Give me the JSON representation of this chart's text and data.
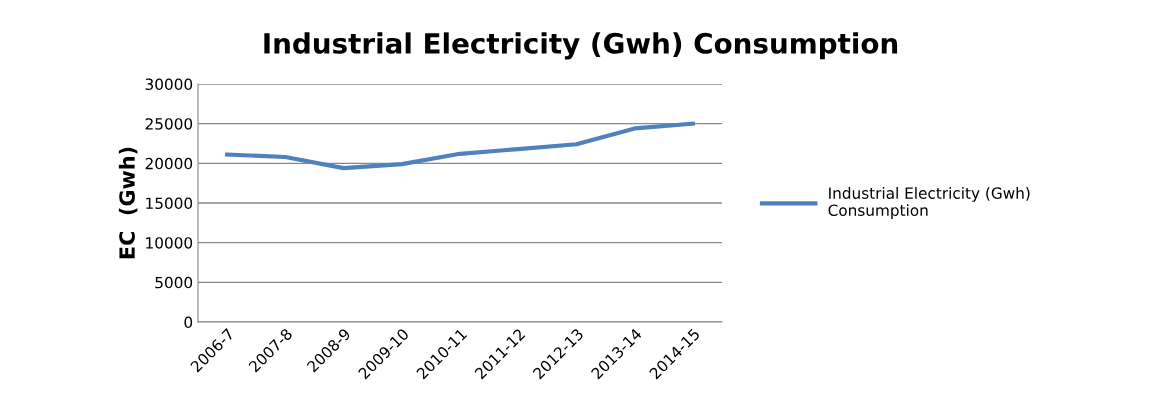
{
  "chart_data": {
    "type": "line",
    "title": "Industrial Electricity (Gwh) Consumption",
    "ylabel": "EC  (Gwh)",
    "categories": [
      "2006-7",
      "2007-8",
      "2008-9",
      "2009-10",
      "2010-11",
      "2011-12",
      "2012-13",
      "2013-14",
      "2014-15"
    ],
    "series": [
      {
        "name": "Industrial Electricity (Gwh)\nConsumption",
        "color": "#4f81bd",
        "values": [
          21100,
          20800,
          19400,
          19900,
          21200,
          21800,
          22400,
          24400,
          25000
        ]
      }
    ],
    "ylim": [
      0,
      30000
    ],
    "yticks": [
      0,
      5000,
      10000,
      15000,
      20000,
      25000,
      30000
    ],
    "grid": "y",
    "legend": "right",
    "marker": "none",
    "line_style": "solid"
  }
}
